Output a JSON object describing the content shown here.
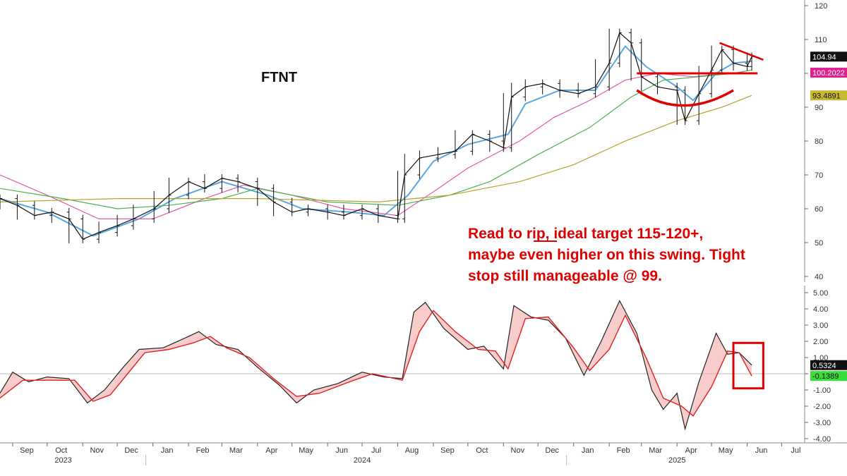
{
  "chart_data": [
    {
      "type": "line",
      "ticker": "FTNT",
      "annotation_lines": [
        "Read to rip, ideal target 115-120+,",
        "maybe even higher on this swing. Tight",
        "stop still manageable @ 99."
      ],
      "ylim": [
        40,
        120
      ],
      "yticks": [
        40,
        50,
        60,
        70,
        80,
        90,
        100,
        110,
        120
      ],
      "price_series": {
        "name": "",
        "points": [
          [
            "2023-08-21",
            63
          ],
          [
            "2023-09-05",
            61
          ],
          [
            "2023-09-20",
            58
          ],
          [
            "2023-10-05",
            59
          ],
          [
            "2023-10-20",
            57
          ],
          [
            "2023-11-01",
            51
          ],
          [
            "2023-11-15",
            53
          ],
          [
            "2023-12-01",
            55
          ],
          [
            "2023-12-15",
            57
          ],
          [
            "2024-01-02",
            60
          ],
          [
            "2024-01-15",
            64
          ],
          [
            "2024-02-01",
            68
          ],
          [
            "2024-02-15",
            66
          ],
          [
            "2024-03-01",
            69
          ],
          [
            "2024-03-15",
            68
          ],
          [
            "2024-04-01",
            66
          ],
          [
            "2024-04-15",
            62
          ],
          [
            "2024-05-01",
            59
          ],
          [
            "2024-05-15",
            60
          ],
          [
            "2024-06-01",
            59
          ],
          [
            "2024-06-15",
            58
          ],
          [
            "2024-07-01",
            60
          ],
          [
            "2024-07-15",
            58
          ],
          [
            "2024-08-01",
            57
          ],
          [
            "2024-08-07",
            70
          ],
          [
            "2024-08-20",
            75
          ],
          [
            "2024-09-05",
            76
          ],
          [
            "2024-09-20",
            77
          ],
          [
            "2024-10-05",
            82
          ],
          [
            "2024-10-20",
            80
          ],
          [
            "2024-11-01",
            78
          ],
          [
            "2024-11-08",
            93
          ],
          [
            "2024-11-20",
            96
          ],
          [
            "2024-12-05",
            97
          ],
          [
            "2024-12-20",
            95
          ],
          [
            "2025-01-05",
            94
          ],
          [
            "2025-01-20",
            96
          ],
          [
            "2025-02-01",
            103
          ],
          [
            "2025-02-10",
            112
          ],
          [
            "2025-02-20",
            109
          ],
          [
            "2025-03-01",
            99
          ],
          [
            "2025-03-15",
            96
          ],
          [
            "2025-04-01",
            95
          ],
          [
            "2025-04-08",
            86
          ],
          [
            "2025-04-20",
            94
          ],
          [
            "2025-05-01",
            101
          ],
          [
            "2025-05-10",
            107
          ],
          [
            "2025-05-20",
            103
          ],
          [
            "2025-06-01",
            102
          ],
          [
            "2025-06-05",
            104.94
          ]
        ]
      },
      "moving_averages": [
        {
          "name": "",
          "color": "#5aa7e0",
          "points": [
            [
              "2023-08-21",
              63
            ],
            [
              "2023-10-01",
              59
            ],
            [
              "2023-11-10",
              52
            ],
            [
              "2023-12-20",
              57
            ],
            [
              "2024-01-20",
              63
            ],
            [
              "2024-03-01",
              68
            ],
            [
              "2024-04-10",
              64
            ],
            [
              "2024-05-10",
              60
            ],
            [
              "2024-06-20",
              59
            ],
            [
              "2024-07-20",
              58
            ],
            [
              "2024-08-10",
              64
            ],
            [
              "2024-09-01",
              74
            ],
            [
              "2024-10-01",
              79
            ],
            [
              "2024-11-05",
              82
            ],
            [
              "2024-11-20",
              91
            ],
            [
              "2024-12-20",
              95
            ],
            [
              "2025-01-20",
              95
            ],
            [
              "2025-02-15",
              108
            ],
            [
              "2025-03-05",
              102
            ],
            [
              "2025-04-01",
              96
            ],
            [
              "2025-04-15",
              92
            ],
            [
              "2025-05-05",
              100
            ],
            [
              "2025-05-20",
              103
            ],
            [
              "2025-06-05",
              103.6
            ]
          ]
        },
        {
          "name": "",
          "color": "#e05aa7",
          "points": [
            [
              "2023-08-21",
              70
            ],
            [
              "2023-10-01",
              64
            ],
            [
              "2023-11-15",
              57
            ],
            [
              "2024-01-01",
              57
            ],
            [
              "2024-02-15",
              63
            ],
            [
              "2024-03-20",
              67
            ],
            [
              "2024-05-01",
              64
            ],
            [
              "2024-06-15",
              60
            ],
            [
              "2024-08-01",
              58
            ],
            [
              "2024-09-01",
              65
            ],
            [
              "2024-10-01",
              72
            ],
            [
              "2024-11-15",
              80
            ],
            [
              "2024-12-15",
              87
            ],
            [
              "2025-01-15",
              92
            ],
            [
              "2025-02-15",
              98
            ],
            [
              "2025-03-15",
              100
            ],
            [
              "2025-04-15",
              99
            ],
            [
              "2025-05-15",
              100
            ],
            [
              "2025-06-05",
              100.2022
            ]
          ]
        },
        {
          "name": "",
          "color": "#4caf50",
          "points": [
            [
              "2023-08-21",
              66
            ],
            [
              "2023-10-15",
              63
            ],
            [
              "2023-12-01",
              60
            ],
            [
              "2024-01-15",
              61
            ],
            [
              "2024-03-01",
              63
            ],
            [
              "2024-04-01",
              66
            ],
            [
              "2024-06-01",
              62
            ],
            [
              "2024-08-01",
              61
            ],
            [
              "2024-09-15",
              64
            ],
            [
              "2024-10-20",
              68
            ],
            [
              "2024-12-01",
              76
            ],
            [
              "2025-01-15",
              84
            ],
            [
              "2025-02-20",
              93
            ],
            [
              "2025-03-20",
              98
            ],
            [
              "2025-04-20",
              99
            ],
            [
              "2025-05-20",
              100
            ],
            [
              "2025-06-05",
              101
            ]
          ]
        },
        {
          "name": "",
          "color": "#b5a22a",
          "points": [
            [
              "2023-08-21",
              62
            ],
            [
              "2023-12-01",
              63
            ],
            [
              "2024-04-01",
              63
            ],
            [
              "2024-07-15",
              62
            ],
            [
              "2024-09-15",
              64
            ],
            [
              "2024-11-15",
              68
            ],
            [
              "2025-01-01",
              73
            ],
            [
              "2025-02-15",
              80
            ],
            [
              "2025-04-01",
              86
            ],
            [
              "2025-05-10",
              90
            ],
            [
              "2025-06-05",
              93.4891
            ]
          ]
        }
      ],
      "badges": [
        {
          "value": "104.94",
          "y": 104.94,
          "bg": "#111111",
          "fg": "#ffffff"
        },
        {
          "value": "100.2022",
          "y": 100.2022,
          "bg": "#e0208f",
          "fg": "#ffffff"
        },
        {
          "value": "93.4891",
          "y": 93.4891,
          "bg": "#c8b832",
          "fg": "#111111"
        }
      ],
      "drawn_lines": [
        {
          "kind": "support",
          "y": 100,
          "x0": "2025-02-25",
          "x1": "2025-06-10",
          "color": "#e00000"
        },
        {
          "kind": "downtrend",
          "points": [
            [
              "2025-05-08",
              109
            ],
            [
              "2025-06-15",
              104
            ]
          ],
          "color": "#e00000"
        },
        {
          "kind": "cup",
          "points": [
            [
              "2025-02-25",
              95
            ],
            [
              "2025-04-05",
              90.5
            ],
            [
              "2025-05-20",
              95
            ]
          ],
          "color": "#e00000"
        }
      ]
    },
    {
      "type": "area",
      "ylim": [
        -4,
        5
      ],
      "yticks": [
        -4,
        -3,
        -2,
        -1,
        0,
        1,
        2,
        3,
        4,
        5
      ],
      "ytick_labels": [
        "-4.00",
        "-3.00",
        "-2.00",
        "-1.00",
        "",
        "1.00",
        "2.00",
        "3.00",
        "4.00",
        "5.00"
      ],
      "series": [
        {
          "name": "",
          "color": "#222222",
          "points": [
            [
              "2023-08-21",
              -1.2
            ],
            [
              "2023-09-01",
              0.1
            ],
            [
              "2023-09-15",
              -0.5
            ],
            [
              "2023-10-01",
              -0.2
            ],
            [
              "2023-10-20",
              -0.3
            ],
            [
              "2023-11-05",
              -1.8
            ],
            [
              "2023-11-20",
              -1.0
            ],
            [
              "2023-12-05",
              0.3
            ],
            [
              "2023-12-20",
              1.5
            ],
            [
              "2024-01-10",
              1.6
            ],
            [
              "2024-02-01",
              2.3
            ],
            [
              "2024-02-10",
              2.6
            ],
            [
              "2024-02-25",
              1.8
            ],
            [
              "2024-03-15",
              1.5
            ],
            [
              "2024-04-01",
              0.4
            ],
            [
              "2024-04-20",
              -0.7
            ],
            [
              "2024-05-05",
              -1.8
            ],
            [
              "2024-05-20",
              -1.0
            ],
            [
              "2024-06-10",
              -0.6
            ],
            [
              "2024-07-01",
              0.1
            ],
            [
              "2024-07-20",
              -0.2
            ],
            [
              "2024-08-05",
              -0.3
            ],
            [
              "2024-08-15",
              3.8
            ],
            [
              "2024-08-25",
              4.4
            ],
            [
              "2024-09-10",
              2.8
            ],
            [
              "2024-10-01",
              1.5
            ],
            [
              "2024-10-15",
              1.7
            ],
            [
              "2024-11-01",
              0.3
            ],
            [
              "2024-11-10",
              4.2
            ],
            [
              "2024-11-25",
              3.5
            ],
            [
              "2024-12-10",
              3.3
            ],
            [
              "2024-12-25",
              2.2
            ],
            [
              "2025-01-10",
              -0.1
            ],
            [
              "2025-01-25",
              2.0
            ],
            [
              "2025-02-10",
              4.5
            ],
            [
              "2025-02-25",
              2.5
            ],
            [
              "2025-03-10",
              -1.0
            ],
            [
              "2025-03-20",
              -2.2
            ],
            [
              "2025-04-01",
              -1.2
            ],
            [
              "2025-04-08",
              -3.4
            ],
            [
              "2025-04-20",
              -0.5
            ],
            [
              "2025-05-05",
              2.5
            ],
            [
              "2025-05-15",
              1.2
            ],
            [
              "2025-05-25",
              1.3
            ],
            [
              "2025-06-05",
              0.5324
            ]
          ]
        },
        {
          "name": "",
          "color": "#e02020",
          "points": [
            [
              "2023-08-21",
              -1.5
            ],
            [
              "2023-09-10",
              -0.4
            ],
            [
              "2023-10-01",
              -0.4
            ],
            [
              "2023-10-25",
              -0.4
            ],
            [
              "2023-11-10",
              -1.7
            ],
            [
              "2023-11-25",
              -1.3
            ],
            [
              "2023-12-10",
              0.0
            ],
            [
              "2023-12-25",
              1.3
            ],
            [
              "2024-01-15",
              1.5
            ],
            [
              "2024-02-05",
              1.9
            ],
            [
              "2024-02-20",
              2.3
            ],
            [
              "2024-03-05",
              1.6
            ],
            [
              "2024-03-25",
              1.0
            ],
            [
              "2024-04-15",
              -0.3
            ],
            [
              "2024-05-05",
              -1.4
            ],
            [
              "2024-05-25",
              -1.2
            ],
            [
              "2024-06-20",
              -0.5
            ],
            [
              "2024-07-10",
              0.0
            ],
            [
              "2024-08-05",
              -0.4
            ],
            [
              "2024-08-20",
              2.6
            ],
            [
              "2024-09-01",
              3.9
            ],
            [
              "2024-09-20",
              2.6
            ],
            [
              "2024-10-10",
              1.5
            ],
            [
              "2024-10-25",
              1.4
            ],
            [
              "2024-11-05",
              0.3
            ],
            [
              "2024-11-20",
              3.4
            ],
            [
              "2024-12-10",
              3.5
            ],
            [
              "2025-01-01",
              1.6
            ],
            [
              "2025-01-15",
              0.2
            ],
            [
              "2025-02-01",
              1.5
            ],
            [
              "2025-02-15",
              3.6
            ],
            [
              "2025-03-05",
              1.0
            ],
            [
              "2025-03-20",
              -1.5
            ],
            [
              "2025-04-05",
              -2.0
            ],
            [
              "2025-04-15",
              -2.6
            ],
            [
              "2025-05-01",
              -0.8
            ],
            [
              "2025-05-15",
              1.4
            ],
            [
              "2025-05-25",
              1.3
            ],
            [
              "2025-06-05",
              -0.1389
            ]
          ]
        }
      ],
      "badges": [
        {
          "value": "0.5324",
          "y": 0.5324,
          "bg": "#111111",
          "fg": "#ffffff"
        },
        {
          "value": "-0.1389",
          "y": -0.1389,
          "bg": "#3ddc3d",
          "fg": "#111111"
        }
      ],
      "highlight_box": {
        "x0": "2025-05-20",
        "x1": "2025-06-15",
        "y0": -0.9,
        "y1": 1.9,
        "color": "#e00000"
      }
    }
  ],
  "x_axis": {
    "start": "2023-08-21",
    "end": "2025-07-21",
    "month_labels": [
      [
        "2023-09-01",
        "Sep"
      ],
      [
        "2023-10-01",
        "Oct"
      ],
      [
        "2023-11-01",
        "Nov"
      ],
      [
        "2023-12-01",
        "Dec"
      ],
      [
        "2024-01-01",
        "Jan"
      ],
      [
        "2024-02-01",
        "Feb"
      ],
      [
        "2024-03-01",
        "Mar"
      ],
      [
        "2024-04-01",
        "Apr"
      ],
      [
        "2024-05-01",
        "May"
      ],
      [
        "2024-06-01",
        "Jun"
      ],
      [
        "2024-07-01",
        "Jul"
      ],
      [
        "2024-08-01",
        "Aug"
      ],
      [
        "2024-09-01",
        "Sep"
      ],
      [
        "2024-10-01",
        "Oct"
      ],
      [
        "2024-11-01",
        "Nov"
      ],
      [
        "2024-12-01",
        "Dec"
      ],
      [
        "2025-01-01",
        "Jan"
      ],
      [
        "2025-02-01",
        "Feb"
      ],
      [
        "2025-03-01",
        "Mar"
      ],
      [
        "2025-04-01",
        "Apr"
      ],
      [
        "2025-05-01",
        "May"
      ],
      [
        "2025-06-01",
        "Jun"
      ],
      [
        "2025-07-01",
        "Jul"
      ]
    ],
    "year_labels": [
      [
        "2023-10-15",
        "2023"
      ],
      [
        "2024-07-01",
        "2024"
      ],
      [
        "2025-04-01",
        "2025"
      ]
    ],
    "year_dividers": [
      "2024-01-01",
      "2025-01-01"
    ]
  }
}
